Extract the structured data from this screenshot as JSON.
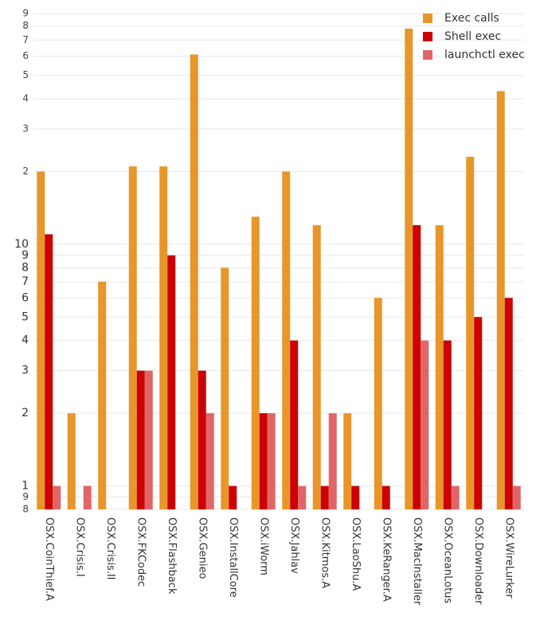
{
  "chart_data": {
    "type": "bar",
    "log_scale": true,
    "grid": true,
    "legend": "top-right",
    "categories": [
      "OSX.CoinThief.A",
      "OSX.Crisis.I",
      "OSX.Crisis.II",
      "OSX.FKCodec",
      "OSX.Flashback",
      "OSX.Genieo",
      "OSX.InstallCore",
      "OSX.iWorm",
      "OSX.Jahlav",
      "OSX.Kitmos.A",
      "OSX.LaoShu.A",
      "OSX.KeRanger.A",
      "OSX.MacInstaller",
      "OSX.OceanLotus",
      "OSX.Downloader",
      "OSX.WireLurker"
    ],
    "series": [
      {
        "name": "Exec calls",
        "color": "#e8962a",
        "values": [
          20,
          2,
          7,
          21,
          21,
          61,
          8,
          13,
          20,
          12,
          2,
          6,
          78,
          12,
          23,
          43
        ]
      },
      {
        "name": "Shell exec",
        "color": "#cc0000",
        "values": [
          11,
          null,
          null,
          3,
          9,
          3,
          1,
          2,
          4,
          1,
          1,
          1,
          12,
          4,
          5,
          6
        ]
      },
      {
        "name": "launchctl exec",
        "color": "#e06666",
        "values": [
          1,
          1,
          null,
          3,
          null,
          2,
          null,
          2,
          1,
          2,
          null,
          null,
          4,
          1,
          null,
          1
        ]
      }
    ],
    "ylim": [
      0.8,
      95
    ],
    "yticks": [
      {
        "value": 0.8,
        "label": "8"
      },
      {
        "value": 0.9,
        "label": "9"
      },
      1,
      2,
      3,
      4,
      5,
      6,
      7,
      8,
      9,
      10,
      {
        "value": 20,
        "label": "2"
      },
      {
        "value": 30,
        "label": "3"
      },
      {
        "value": 40,
        "label": "4"
      },
      {
        "value": 50,
        "label": "5"
      },
      {
        "value": 60,
        "label": "6"
      },
      {
        "value": 70,
        "label": "7"
      },
      {
        "value": 80,
        "label": "8"
      },
      {
        "value": 90,
        "label": "9"
      }
    ]
  }
}
